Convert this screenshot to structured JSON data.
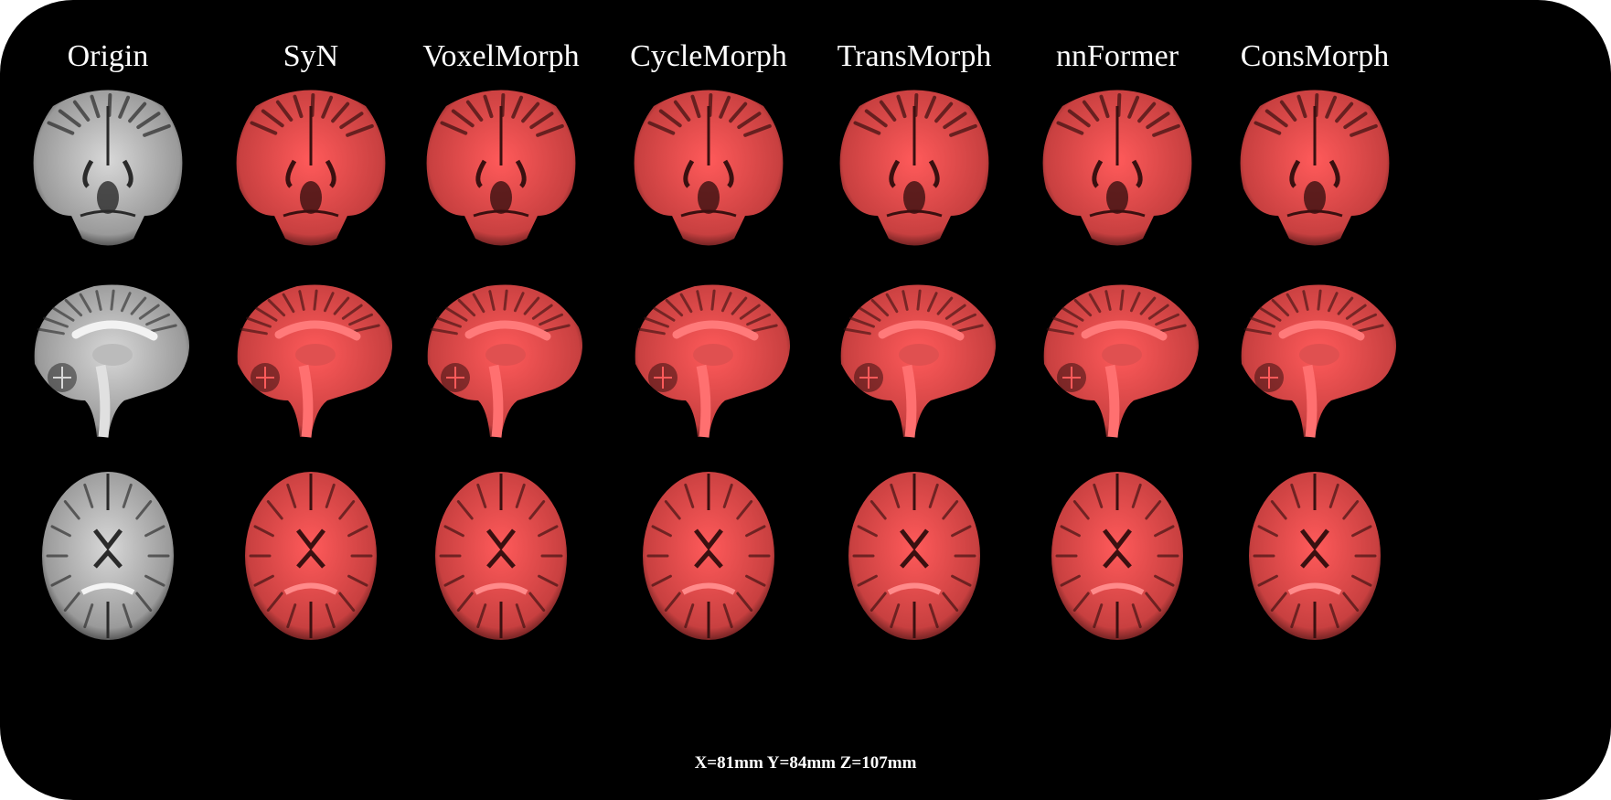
{
  "columns": [
    {
      "label": "Origin",
      "overlay": false
    },
    {
      "label": "SyN",
      "overlay": true
    },
    {
      "label": "VoxelMorph",
      "overlay": true
    },
    {
      "label": "CycleMorph",
      "overlay": true
    },
    {
      "label": "TransMorph",
      "overlay": true
    },
    {
      "label": "nnFormer",
      "overlay": true
    },
    {
      "label": "ConsMorph",
      "overlay": true
    }
  ],
  "rows": [
    {
      "view": "coronal"
    },
    {
      "view": "sagittal"
    },
    {
      "view": "axial"
    }
  ],
  "coordinates": "X=81mm Y=84mm Z=107mm",
  "colors": {
    "background": "#000000",
    "overlay_red": "#ff5a5a",
    "grey_tissue": "#d8d8d8",
    "dark_structure": "#1a0808"
  }
}
